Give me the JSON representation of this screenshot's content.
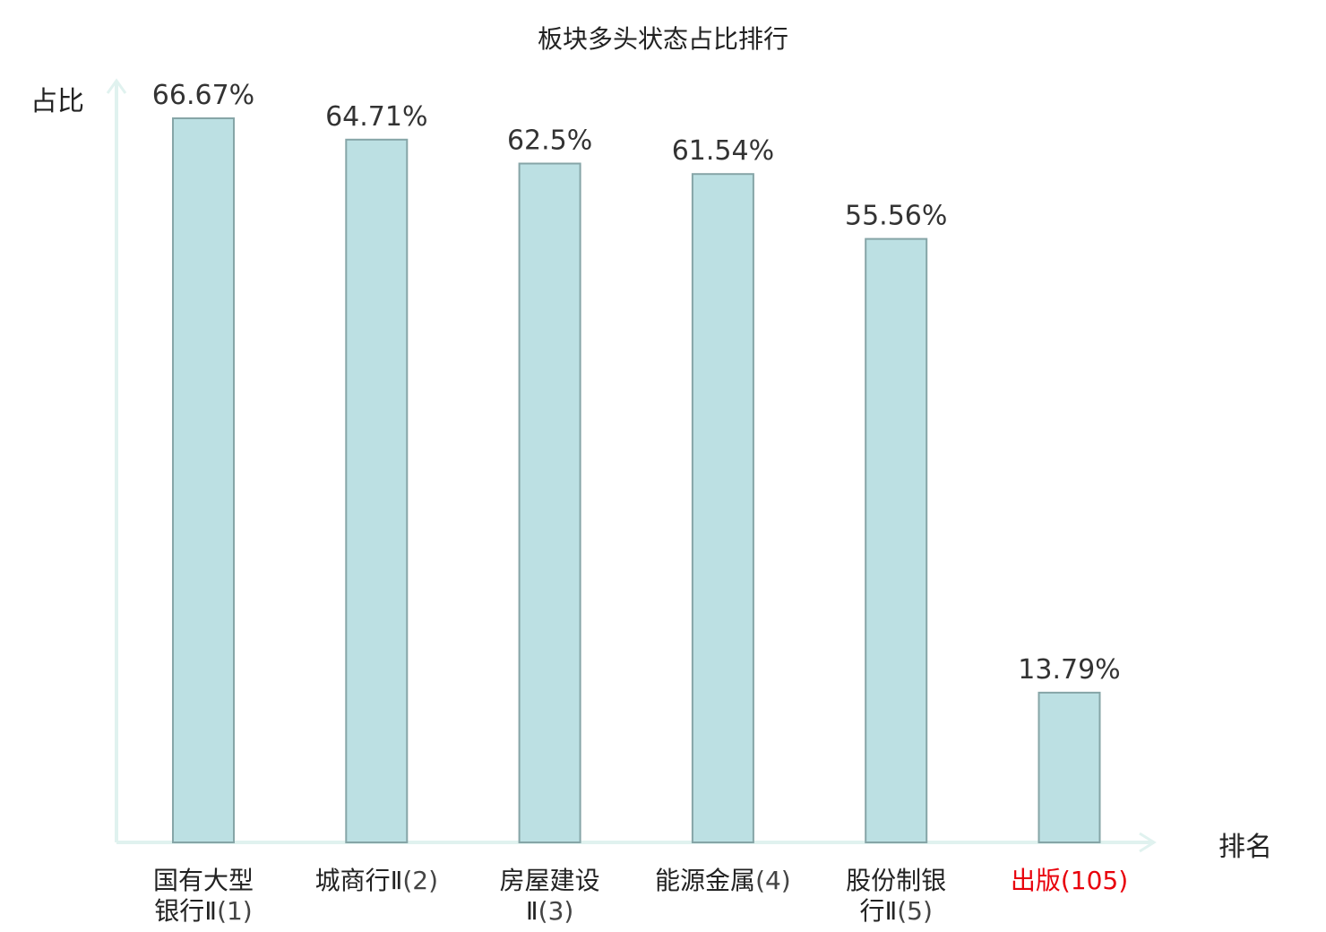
{
  "chart_data": {
    "type": "bar",
    "title": "板块多头状态占比排行",
    "ylabel": "占比",
    "xlabel": "排名",
    "unit": "%",
    "ylim": [
      0,
      70
    ],
    "categories": [
      {
        "name_line1": "国有大型",
        "name_line2": "银行Ⅱ",
        "rank": "(1)"
      },
      {
        "name_line1": "城商行Ⅱ",
        "name_line2": "",
        "rank": "(2)"
      },
      {
        "name_line1": "房屋建设",
        "name_line2": "Ⅱ",
        "rank": "(3)"
      },
      {
        "name_line1": "能源金属",
        "name_line2": "",
        "rank": "(4)"
      },
      {
        "name_line1": "股份制银",
        "name_line2": "行Ⅱ",
        "rank": "(5)"
      },
      {
        "name_line1": "出版",
        "name_line2": "",
        "rank": "(105)"
      }
    ],
    "values": [
      66.67,
      64.71,
      62.5,
      61.54,
      55.56,
      13.79
    ],
    "value_labels": [
      "66.67%",
      "64.71%",
      "62.5%",
      "61.54%",
      "55.56%",
      "13.79%"
    ],
    "highlight_index": 5,
    "colors": {
      "bar_fill": "#bce0e3",
      "bar_stroke": "#86a5a7",
      "axis": "#e0f2ef",
      "highlight_text": "#e8000b",
      "label_text": "#333333"
    },
    "grid": false
  }
}
